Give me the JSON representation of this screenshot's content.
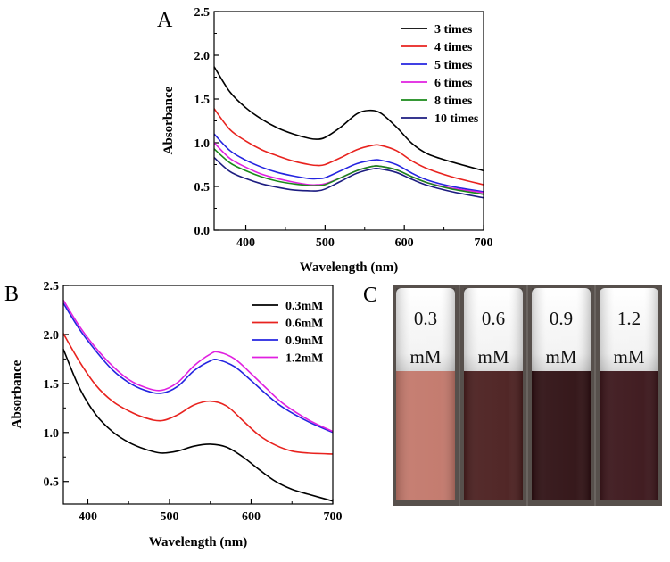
{
  "panel_labels": {
    "a": "A",
    "b": "B",
    "c": "C"
  },
  "chart_data": [
    {
      "id": "A",
      "type": "line",
      "title": "",
      "xlabel": "Wavelength (nm)",
      "ylabel": "Absorbance",
      "xlim": [
        360,
        700
      ],
      "ylim": [
        0.0,
        2.5
      ],
      "xticks": [
        400,
        500,
        600,
        700
      ],
      "xtick_labels": [
        "400",
        "500",
        "600",
        "700"
      ],
      "yticks": [
        0.0,
        0.5,
        1.0,
        1.5,
        2.0,
        2.5
      ],
      "ytick_labels": [
        "0.0",
        "0.5",
        "1.0",
        "1.5",
        "2.0",
        "2.5"
      ],
      "legend_position": "top-right",
      "series": [
        {
          "name": "3 times",
          "color": "#000000",
          "x": [
            360,
            380,
            400,
            420,
            440,
            460,
            480,
            490,
            500,
            520,
            540,
            555,
            570,
            590,
            610,
            630,
            660,
            700
          ],
          "y": [
            1.87,
            1.58,
            1.4,
            1.27,
            1.17,
            1.1,
            1.05,
            1.04,
            1.06,
            1.18,
            1.33,
            1.37,
            1.34,
            1.18,
            0.99,
            0.87,
            0.78,
            0.68
          ]
        },
        {
          "name": "4 times",
          "color": "#e8231f",
          "x": [
            360,
            380,
            400,
            420,
            440,
            460,
            480,
            490,
            500,
            520,
            540,
            560,
            570,
            590,
            610,
            630,
            660,
            700
          ],
          "y": [
            1.39,
            1.15,
            1.02,
            0.92,
            0.85,
            0.79,
            0.75,
            0.74,
            0.75,
            0.83,
            0.92,
            0.97,
            0.97,
            0.91,
            0.79,
            0.7,
            0.61,
            0.52
          ]
        },
        {
          "name": "5 times",
          "color": "#2424e0",
          "x": [
            360,
            380,
            400,
            420,
            440,
            460,
            480,
            490,
            500,
            520,
            540,
            560,
            570,
            590,
            610,
            630,
            660,
            700
          ],
          "y": [
            1.1,
            0.91,
            0.8,
            0.72,
            0.66,
            0.62,
            0.59,
            0.59,
            0.6,
            0.68,
            0.76,
            0.8,
            0.8,
            0.75,
            0.65,
            0.57,
            0.5,
            0.44
          ]
        },
        {
          "name": "6 times",
          "color": "#e020e0",
          "x": [
            360,
            380,
            400,
            420,
            440,
            460,
            480,
            490,
            500,
            520,
            540,
            560,
            570,
            590,
            610,
            630,
            660,
            700
          ],
          "y": [
            1.0,
            0.82,
            0.72,
            0.64,
            0.59,
            0.55,
            0.52,
            0.52,
            0.53,
            0.6,
            0.68,
            0.73,
            0.73,
            0.69,
            0.61,
            0.54,
            0.48,
            0.43
          ]
        },
        {
          "name": "8 times",
          "color": "#1a8a1a",
          "x": [
            360,
            380,
            400,
            420,
            440,
            460,
            480,
            490,
            500,
            520,
            540,
            560,
            570,
            590,
            610,
            630,
            660,
            700
          ],
          "y": [
            0.93,
            0.77,
            0.68,
            0.61,
            0.56,
            0.53,
            0.51,
            0.51,
            0.52,
            0.6,
            0.68,
            0.73,
            0.73,
            0.69,
            0.61,
            0.54,
            0.47,
            0.41
          ]
        },
        {
          "name": "10 times",
          "color": "#1c1c80",
          "x": [
            360,
            380,
            400,
            420,
            440,
            460,
            480,
            490,
            500,
            520,
            540,
            560,
            570,
            590,
            610,
            630,
            660,
            700
          ],
          "y": [
            0.83,
            0.67,
            0.59,
            0.53,
            0.49,
            0.46,
            0.45,
            0.45,
            0.47,
            0.56,
            0.65,
            0.7,
            0.7,
            0.66,
            0.58,
            0.51,
            0.44,
            0.37
          ]
        }
      ]
    },
    {
      "id": "B",
      "type": "line",
      "title": "",
      "xlabel": "Wavelength (nm)",
      "ylabel": "Absorbance",
      "xlim": [
        370,
        700
      ],
      "ylim": [
        0.27,
        2.5
      ],
      "xticks": [
        400,
        500,
        600,
        700
      ],
      "xtick_labels": [
        "400",
        "500",
        "600",
        "700"
      ],
      "yticks": [
        0.5,
        1.0,
        1.5,
        2.0,
        2.5
      ],
      "ytick_labels": [
        "0.5",
        "1.0",
        "1.5",
        "2.0",
        "2.5"
      ],
      "legend_position": "top-right",
      "series": [
        {
          "name": "0.3mM",
          "color": "#000000",
          "x": [
            370,
            390,
            410,
            430,
            450,
            470,
            490,
            510,
            530,
            550,
            570,
            590,
            610,
            630,
            650,
            670,
            700
          ],
          "y": [
            1.85,
            1.45,
            1.18,
            1.01,
            0.9,
            0.83,
            0.79,
            0.81,
            0.86,
            0.88,
            0.85,
            0.75,
            0.62,
            0.5,
            0.42,
            0.37,
            0.3
          ]
        },
        {
          "name": "0.6mM",
          "color": "#e8231f",
          "x": [
            370,
            390,
            410,
            430,
            450,
            470,
            490,
            510,
            530,
            550,
            570,
            590,
            610,
            630,
            650,
            670,
            700
          ],
          "y": [
            2.01,
            1.72,
            1.48,
            1.32,
            1.22,
            1.15,
            1.12,
            1.18,
            1.28,
            1.32,
            1.27,
            1.12,
            0.97,
            0.87,
            0.81,
            0.79,
            0.78
          ]
        },
        {
          "name": "0.9mM",
          "color": "#2424e0",
          "x": [
            370,
            390,
            410,
            430,
            450,
            470,
            490,
            510,
            530,
            550,
            560,
            580,
            600,
            620,
            640,
            670,
            700
          ],
          "y": [
            2.32,
            2.05,
            1.83,
            1.64,
            1.51,
            1.43,
            1.4,
            1.47,
            1.63,
            1.73,
            1.74,
            1.67,
            1.53,
            1.38,
            1.25,
            1.11,
            1.0
          ]
        },
        {
          "name": "1.2mM",
          "color": "#e020e0",
          "x": [
            370,
            390,
            410,
            430,
            450,
            470,
            490,
            510,
            530,
            550,
            560,
            580,
            600,
            620,
            640,
            670,
            700
          ],
          "y": [
            2.35,
            2.08,
            1.86,
            1.68,
            1.54,
            1.46,
            1.43,
            1.51,
            1.68,
            1.8,
            1.82,
            1.75,
            1.6,
            1.44,
            1.29,
            1.13,
            1.01
          ]
        }
      ]
    }
  ],
  "photo": {
    "vials": [
      {
        "line1": "0.3",
        "line2": "mM",
        "color": "#c2776a"
      },
      {
        "line1": "0.6",
        "line2": "mM",
        "color": "#4a1e1e"
      },
      {
        "line1": "0.9",
        "line2": "mM",
        "color": "#2e0f12"
      },
      {
        "line1": "1.2",
        "line2": "mM",
        "color": "#3a1419"
      }
    ]
  }
}
